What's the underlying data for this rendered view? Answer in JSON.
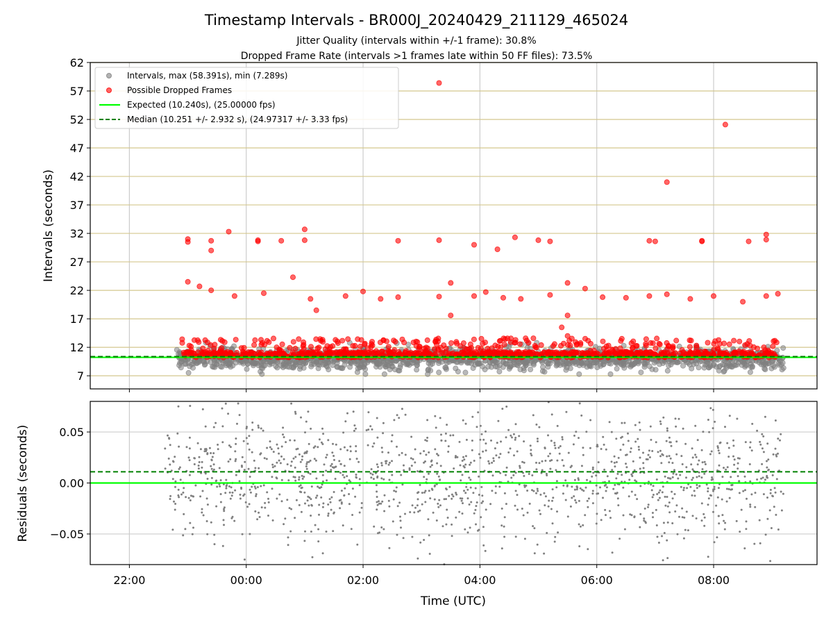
{
  "chart_data": [
    {
      "type": "scatter",
      "title": "Timestamp Intervals - BR000J_20240429_211129_465024",
      "subtitle_lines": [
        "Jitter Quality (intervals within +/-1 frame): 30.8%",
        "Dropped Frame Rate (intervals >1 frames late within 50 FF files): 73.5%"
      ],
      "xlabel": "",
      "ylabel": "Intervals (seconds)",
      "ylim": [
        4.7,
        62
      ],
      "yticks": [
        7,
        12,
        17,
        22,
        27,
        32,
        37,
        42,
        47,
        52,
        57,
        62
      ],
      "x_axis_unit": "hours since 00:00 UTC",
      "xlim": [
        -2.67,
        9.77
      ],
      "xticks": [
        -2,
        0,
        2,
        4,
        6,
        8
      ],
      "grid": "x and y",
      "legend_placement": "top-left",
      "legend": [
        "Intervals, max (58.391s), min (7.289s)",
        "Possible Dropped Frames",
        "Expected (10.240s), (25.00000 fps)",
        "Median (10.251 +/- 2.932 s), (24.97317 +/- 3.33 fps)"
      ],
      "expected_interval": 10.24,
      "median_interval": 10.251,
      "series": [
        {
          "name": "Intervals, max (58.391s), min (7.289s)",
          "color": "#808080",
          "x_range": [
            -1.2,
            9.2
          ],
          "y_center": 10.0,
          "y_min": 7.289,
          "y_max": 58.391
        },
        {
          "name": "Possible Dropped Frames",
          "color": "#ff0000",
          "points_x": [
            -1.0,
            -1.0,
            -0.6,
            -0.6,
            -0.3,
            0.2,
            0.2,
            -0.8,
            0.6,
            1.0,
            1.0,
            2.6,
            3.3,
            3.9,
            4.3,
            4.6,
            5.0,
            5.2,
            6.9,
            7.0,
            7.8,
            7.8,
            8.6,
            8.9,
            8.9,
            3.3,
            7.2,
            8.2,
            -1.0,
            -0.6,
            -0.2,
            0.3,
            1.1,
            1.7,
            2.0,
            2.3,
            2.6,
            3.3,
            3.5,
            3.9,
            4.1,
            4.4,
            4.7,
            5.2,
            5.5,
            5.8,
            6.1,
            6.5,
            6.9,
            7.2,
            7.6,
            8.0,
            8.5,
            8.9,
            9.1,
            0.8,
            1.2,
            3.5,
            5.4,
            5.5,
            5.5
          ],
          "points_y": [
            31.0,
            30.5,
            29.0,
            30.7,
            32.3,
            30.8,
            30.6,
            22.7,
            30.7,
            30.8,
            32.7,
            30.7,
            30.8,
            30.0,
            29.2,
            31.3,
            30.8,
            30.6,
            30.7,
            30.6,
            30.7,
            30.6,
            30.6,
            31.8,
            30.9,
            58.4,
            41.0,
            51.1,
            23.5,
            22.0,
            21.0,
            21.5,
            20.5,
            21.0,
            21.8,
            20.5,
            20.8,
            20.9,
            23.3,
            21.0,
            21.7,
            20.7,
            20.5,
            21.2,
            23.3,
            22.3,
            20.8,
            20.7,
            21.0,
            21.3,
            20.5,
            21.0,
            20.0,
            21.0,
            21.4,
            24.3,
            18.5,
            17.6,
            15.5,
            17.6,
            14.0
          ],
          "band": {
            "x_range": [
              -1.1,
              9.1
            ],
            "y_range": [
              10.2,
              13.8
            ]
          }
        },
        {
          "name": "Expected (10.240s), (25.00000 fps)",
          "color": "#00ff00",
          "y": 10.24
        },
        {
          "name": "Median (10.251 +/- 2.932 s), (24.97317 +/- 3.33 fps)",
          "color": "#008000",
          "y": 10.251
        }
      ]
    },
    {
      "type": "scatter",
      "title": "",
      "xlabel": "Time (UTC)",
      "ylabel": "Residuals (seconds)",
      "ylim": [
        -0.08,
        0.08
      ],
      "yticks": [
        -0.05,
        0.0,
        0.05
      ],
      "ytick_labels": [
        "−0.05",
        "0.00",
        "0.05"
      ],
      "xticks": [
        -2,
        0,
        2,
        4,
        6,
        8
      ],
      "xtick_labels": [
        "22:00",
        "00:00",
        "02:00",
        "04:00",
        "06:00",
        "08:00"
      ],
      "grid": "x and y",
      "expected_line": 0.0,
      "median_line": 0.011,
      "series": [
        {
          "name": "",
          "color": "#808080",
          "x_range": [
            -2.8,
            9.2
          ],
          "y_range": [
            -0.08,
            0.08
          ]
        }
      ]
    }
  ]
}
